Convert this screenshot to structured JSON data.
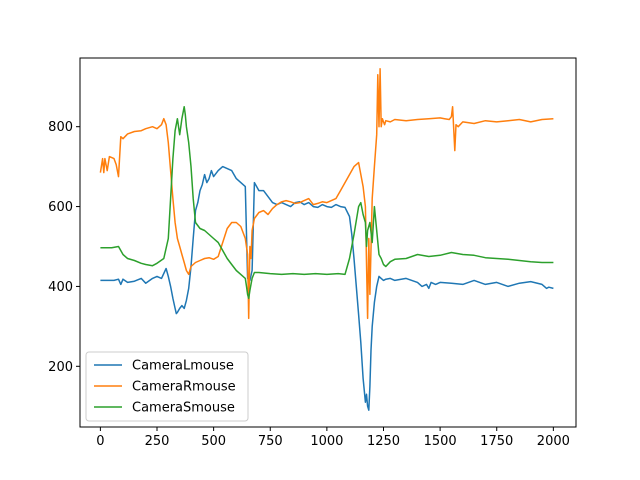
{
  "chart_data": {
    "type": "line",
    "title": "",
    "xlabel": "",
    "ylabel": "",
    "xlim": [
      -90,
      2100
    ],
    "ylim": [
      48,
      972
    ],
    "xticks": [
      0,
      250,
      500,
      750,
      1000,
      1250,
      1500,
      1750,
      2000
    ],
    "yticks": [
      200,
      400,
      600,
      800
    ],
    "grid": false,
    "legend_position": "lower-left",
    "series": [
      {
        "name": "CameraLmouse",
        "color": "#1f77b4",
        "x": [
          0,
          60,
          80,
          90,
          100,
          120,
          150,
          180,
          200,
          230,
          250,
          270,
          290,
          300,
          310,
          320,
          330,
          335,
          340,
          350,
          360,
          370,
          380,
          390,
          400,
          410,
          420,
          430,
          440,
          450,
          460,
          470,
          480,
          490,
          500,
          520,
          540,
          560,
          580,
          600,
          620,
          640,
          650,
          660,
          670,
          680,
          700,
          720,
          740,
          760,
          780,
          800,
          820,
          840,
          860,
          880,
          900,
          920,
          940,
          960,
          980,
          1000,
          1020,
          1040,
          1060,
          1080,
          1100,
          1110,
          1120,
          1130,
          1140,
          1150,
          1160,
          1170,
          1175,
          1180,
          1185,
          1190,
          1195,
          1200,
          1210,
          1220,
          1230,
          1240,
          1250,
          1260,
          1280,
          1300,
          1350,
          1400,
          1420,
          1440,
          1450,
          1460,
          1480,
          1500,
          1550,
          1600,
          1650,
          1700,
          1750,
          1800,
          1850,
          1900,
          1950,
          1970,
          1980,
          2000
        ],
        "y": [
          415,
          415,
          418,
          405,
          418,
          410,
          413,
          420,
          408,
          420,
          425,
          420,
          445,
          425,
          400,
          370,
          345,
          332,
          335,
          345,
          352,
          345,
          365,
          395,
          450,
          520,
          590,
          610,
          640,
          655,
          680,
          660,
          670,
          690,
          675,
          690,
          700,
          695,
          690,
          670,
          660,
          650,
          420,
          415,
          440,
          660,
          640,
          640,
          625,
          610,
          605,
          610,
          605,
          600,
          610,
          612,
          605,
          610,
          600,
          598,
          605,
          600,
          598,
          605,
          600,
          598,
          575,
          530,
          470,
          400,
          330,
          260,
          170,
          110,
          130,
          100,
          90,
          150,
          240,
          300,
          360,
          400,
          425,
          420,
          415,
          418,
          420,
          415,
          420,
          410,
          400,
          405,
          395,
          410,
          405,
          410,
          408,
          405,
          415,
          405,
          410,
          400,
          408,
          412,
          405,
          395,
          398,
          395
        ]
      },
      {
        "name": "CameraRmouse",
        "color": "#ff7f0e",
        "x": [
          0,
          10,
          15,
          20,
          30,
          40,
          60,
          70,
          80,
          90,
          100,
          120,
          150,
          180,
          200,
          230,
          250,
          270,
          280,
          290,
          300,
          310,
          320,
          330,
          340,
          350,
          360,
          370,
          380,
          390,
          400,
          420,
          440,
          460,
          480,
          500,
          520,
          540,
          560,
          580,
          600,
          620,
          640,
          650,
          655,
          660,
          665,
          670,
          680,
          700,
          720,
          740,
          760,
          780,
          800,
          820,
          840,
          860,
          880,
          900,
          920,
          940,
          960,
          980,
          1000,
          1020,
          1040,
          1060,
          1080,
          1100,
          1120,
          1140,
          1160,
          1170,
          1180,
          1185,
          1190,
          1200,
          1210,
          1220,
          1225,
          1230,
          1235,
          1240,
          1245,
          1250,
          1255,
          1260,
          1280,
          1300,
          1350,
          1400,
          1450,
          1500,
          1520,
          1540,
          1550,
          1555,
          1560,
          1565,
          1570,
          1580,
          1600,
          1650,
          1700,
          1750,
          1800,
          1850,
          1900,
          1950,
          2000
        ],
        "y": [
          685,
          720,
          685,
          720,
          690,
          725,
          720,
          705,
          675,
          775,
          770,
          782,
          788,
          790,
          795,
          800,
          795,
          805,
          820,
          805,
          760,
          690,
          620,
          560,
          520,
          500,
          480,
          460,
          440,
          430,
          450,
          460,
          465,
          470,
          472,
          468,
          475,
          510,
          545,
          560,
          560,
          550,
          520,
          480,
          320,
          500,
          470,
          540,
          570,
          585,
          590,
          580,
          595,
          605,
          612,
          615,
          612,
          608,
          610,
          615,
          620,
          605,
          608,
          612,
          610,
          615,
          620,
          640,
          660,
          680,
          700,
          710,
          650,
          600,
          320,
          520,
          380,
          620,
          700,
          780,
          930,
          800,
          945,
          800,
          820,
          812,
          805,
          815,
          812,
          818,
          815,
          818,
          820,
          822,
          820,
          818,
          825,
          850,
          795,
          740,
          805,
          800,
          812,
          808,
          815,
          812,
          815,
          818,
          812,
          818,
          820
        ]
      },
      {
        "name": "CameraSmouse",
        "color": "#2ca02c",
        "x": [
          0,
          50,
          80,
          100,
          120,
          150,
          180,
          200,
          230,
          250,
          280,
          300,
          310,
          320,
          330,
          340,
          350,
          360,
          370,
          375,
          380,
          390,
          400,
          410,
          420,
          440,
          460,
          480,
          500,
          520,
          540,
          560,
          580,
          600,
          620,
          640,
          645,
          650,
          655,
          660,
          670,
          680,
          700,
          750,
          800,
          850,
          900,
          950,
          1000,
          1050,
          1080,
          1100,
          1120,
          1140,
          1150,
          1160,
          1170,
          1175,
          1180,
          1190,
          1200,
          1210,
          1220,
          1230,
          1240,
          1250,
          1260,
          1280,
          1300,
          1350,
          1400,
          1450,
          1500,
          1550,
          1600,
          1650,
          1700,
          1750,
          1800,
          1850,
          1900,
          1950,
          2000
        ],
        "y": [
          497,
          497,
          500,
          480,
          470,
          465,
          458,
          455,
          452,
          458,
          470,
          520,
          620,
          720,
          790,
          820,
          780,
          820,
          850,
          830,
          800,
          760,
          700,
          620,
          560,
          545,
          540,
          530,
          520,
          510,
          490,
          470,
          455,
          440,
          430,
          420,
          400,
          380,
          370,
          390,
          420,
          435,
          435,
          432,
          430,
          432,
          430,
          432,
          430,
          432,
          430,
          470,
          530,
          600,
          610,
          580,
          560,
          500,
          540,
          560,
          510,
          600,
          540,
          480,
          470,
          455,
          450,
          462,
          468,
          470,
          480,
          475,
          478,
          485,
          480,
          478,
          472,
          470,
          468,
          465,
          462,
          460,
          460
        ]
      }
    ]
  }
}
